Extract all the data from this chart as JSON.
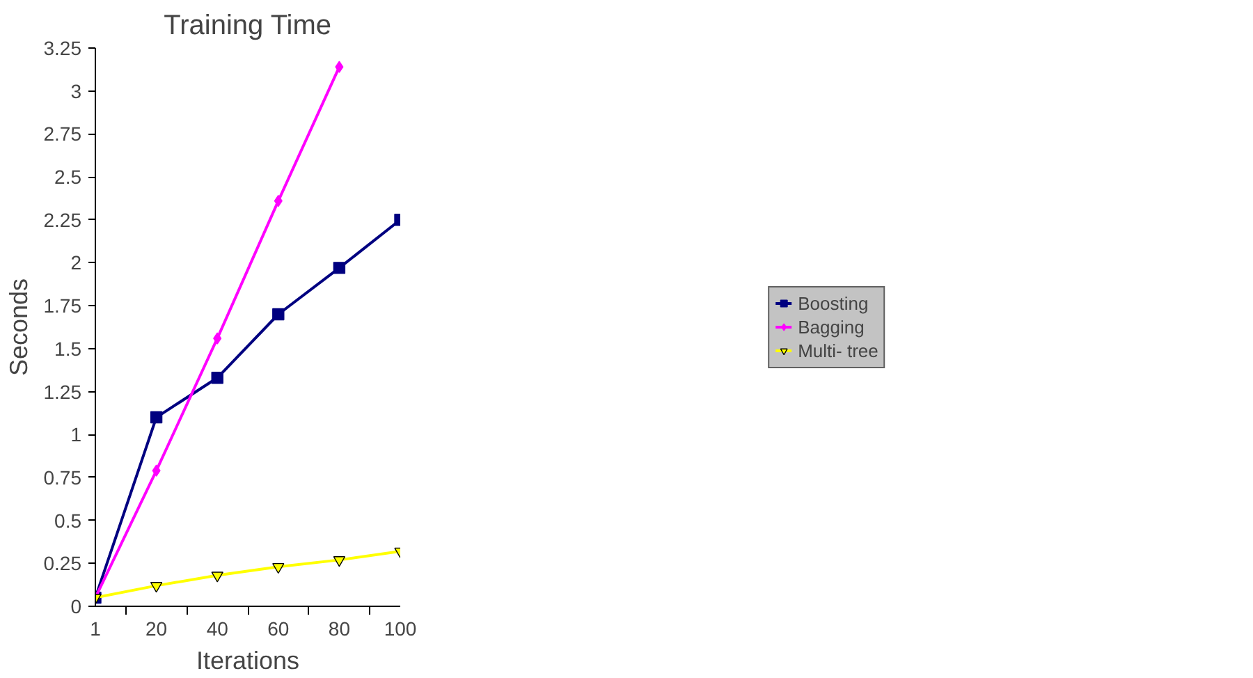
{
  "chart_data": {
    "type": "line",
    "title": "Training Time",
    "xlabel": "Iterations",
    "ylabel": "Seconds",
    "categories": [
      "1",
      "20",
      "40",
      "60",
      "80",
      "100"
    ],
    "series": [
      {
        "name": "Boosting",
        "color": "#000080",
        "marker": "square",
        "values": [
          0.05,
          1.1,
          1.33,
          1.7,
          1.97,
          2.25
        ]
      },
      {
        "name": "Bagging",
        "color": "#ff00ff",
        "marker": "diamond",
        "values": [
          0.05,
          0.79,
          1.56,
          2.36,
          3.14,
          null
        ]
      },
      {
        "name": "Multi- tree",
        "color": "#ffff00",
        "marker": "triangle",
        "values": [
          0.05,
          0.12,
          0.18,
          0.23,
          0.27,
          0.32
        ]
      }
    ],
    "ylim": [
      0,
      3.25
    ],
    "yticks": [
      0,
      0.25,
      0.5,
      0.75,
      1,
      1.25,
      1.5,
      1.75,
      2,
      2.25,
      2.5,
      2.75,
      3,
      3.25
    ],
    "grid": false,
    "legend": "right"
  }
}
